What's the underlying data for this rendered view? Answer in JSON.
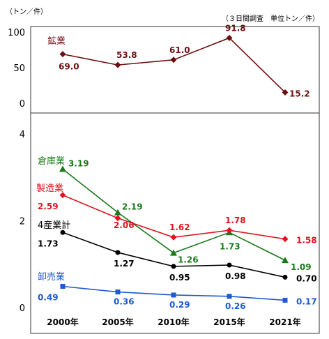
{
  "header": {
    "unit_left": "（トン／件）",
    "unit_right": "（３日間調査　単位トン／件）"
  },
  "colors": {
    "mining": "#6b1010",
    "warehouse": "#1a7a1a",
    "manufacturing": "#e0141e",
    "four_industries": "#000000",
    "wholesale": "#1e5ad2"
  },
  "chart_data": [
    {
      "type": "line",
      "categories": [
        "2000年",
        "2005年",
        "2010年",
        "2015年",
        "2021年"
      ],
      "ylim": [
        0,
        100
      ],
      "yticks": [
        "0",
        "50",
        "100"
      ],
      "series": [
        {
          "name": "鉱業",
          "values": [
            69.0,
            53.8,
            61.0,
            91.8,
            15.2
          ],
          "labels": [
            "69.0",
            "53.8",
            "61.0",
            "91.8",
            "15.2"
          ],
          "color_key": "mining",
          "marker": "diamond"
        }
      ]
    },
    {
      "type": "line",
      "categories": [
        "2000年",
        "2005年",
        "2010年",
        "2015年",
        "2021年"
      ],
      "ylim": [
        0,
        4
      ],
      "yticks": [
        "0",
        "2",
        "4"
      ],
      "series": [
        {
          "name": "倉庫業",
          "values": [
            3.19,
            2.19,
            1.26,
            1.73,
            1.09
          ],
          "labels": [
            "3.19",
            "2.19",
            "1.26",
            "1.73",
            "1.09"
          ],
          "color_key": "warehouse",
          "marker": "triangle"
        },
        {
          "name": "製造業",
          "values": [
            2.59,
            2.06,
            1.62,
            1.78,
            1.58
          ],
          "labels": [
            "2.59",
            "2.06",
            "1.62",
            "1.78",
            "1.58"
          ],
          "color_key": "manufacturing",
          "marker": "diamond"
        },
        {
          "name": "4産業計",
          "values": [
            1.73,
            1.27,
            0.95,
            0.98,
            0.7
          ],
          "labels": [
            "1.73",
            "1.27",
            "0.95",
            "0.98",
            "0.70"
          ],
          "color_key": "four_industries",
          "marker": "circle"
        },
        {
          "name": "卸売業",
          "values": [
            0.49,
            0.36,
            0.29,
            0.26,
            0.17
          ],
          "labels": [
            "0.49",
            "0.36",
            "0.29",
            "0.26",
            "0.17"
          ],
          "color_key": "wholesale",
          "marker": "square"
        }
      ]
    }
  ]
}
